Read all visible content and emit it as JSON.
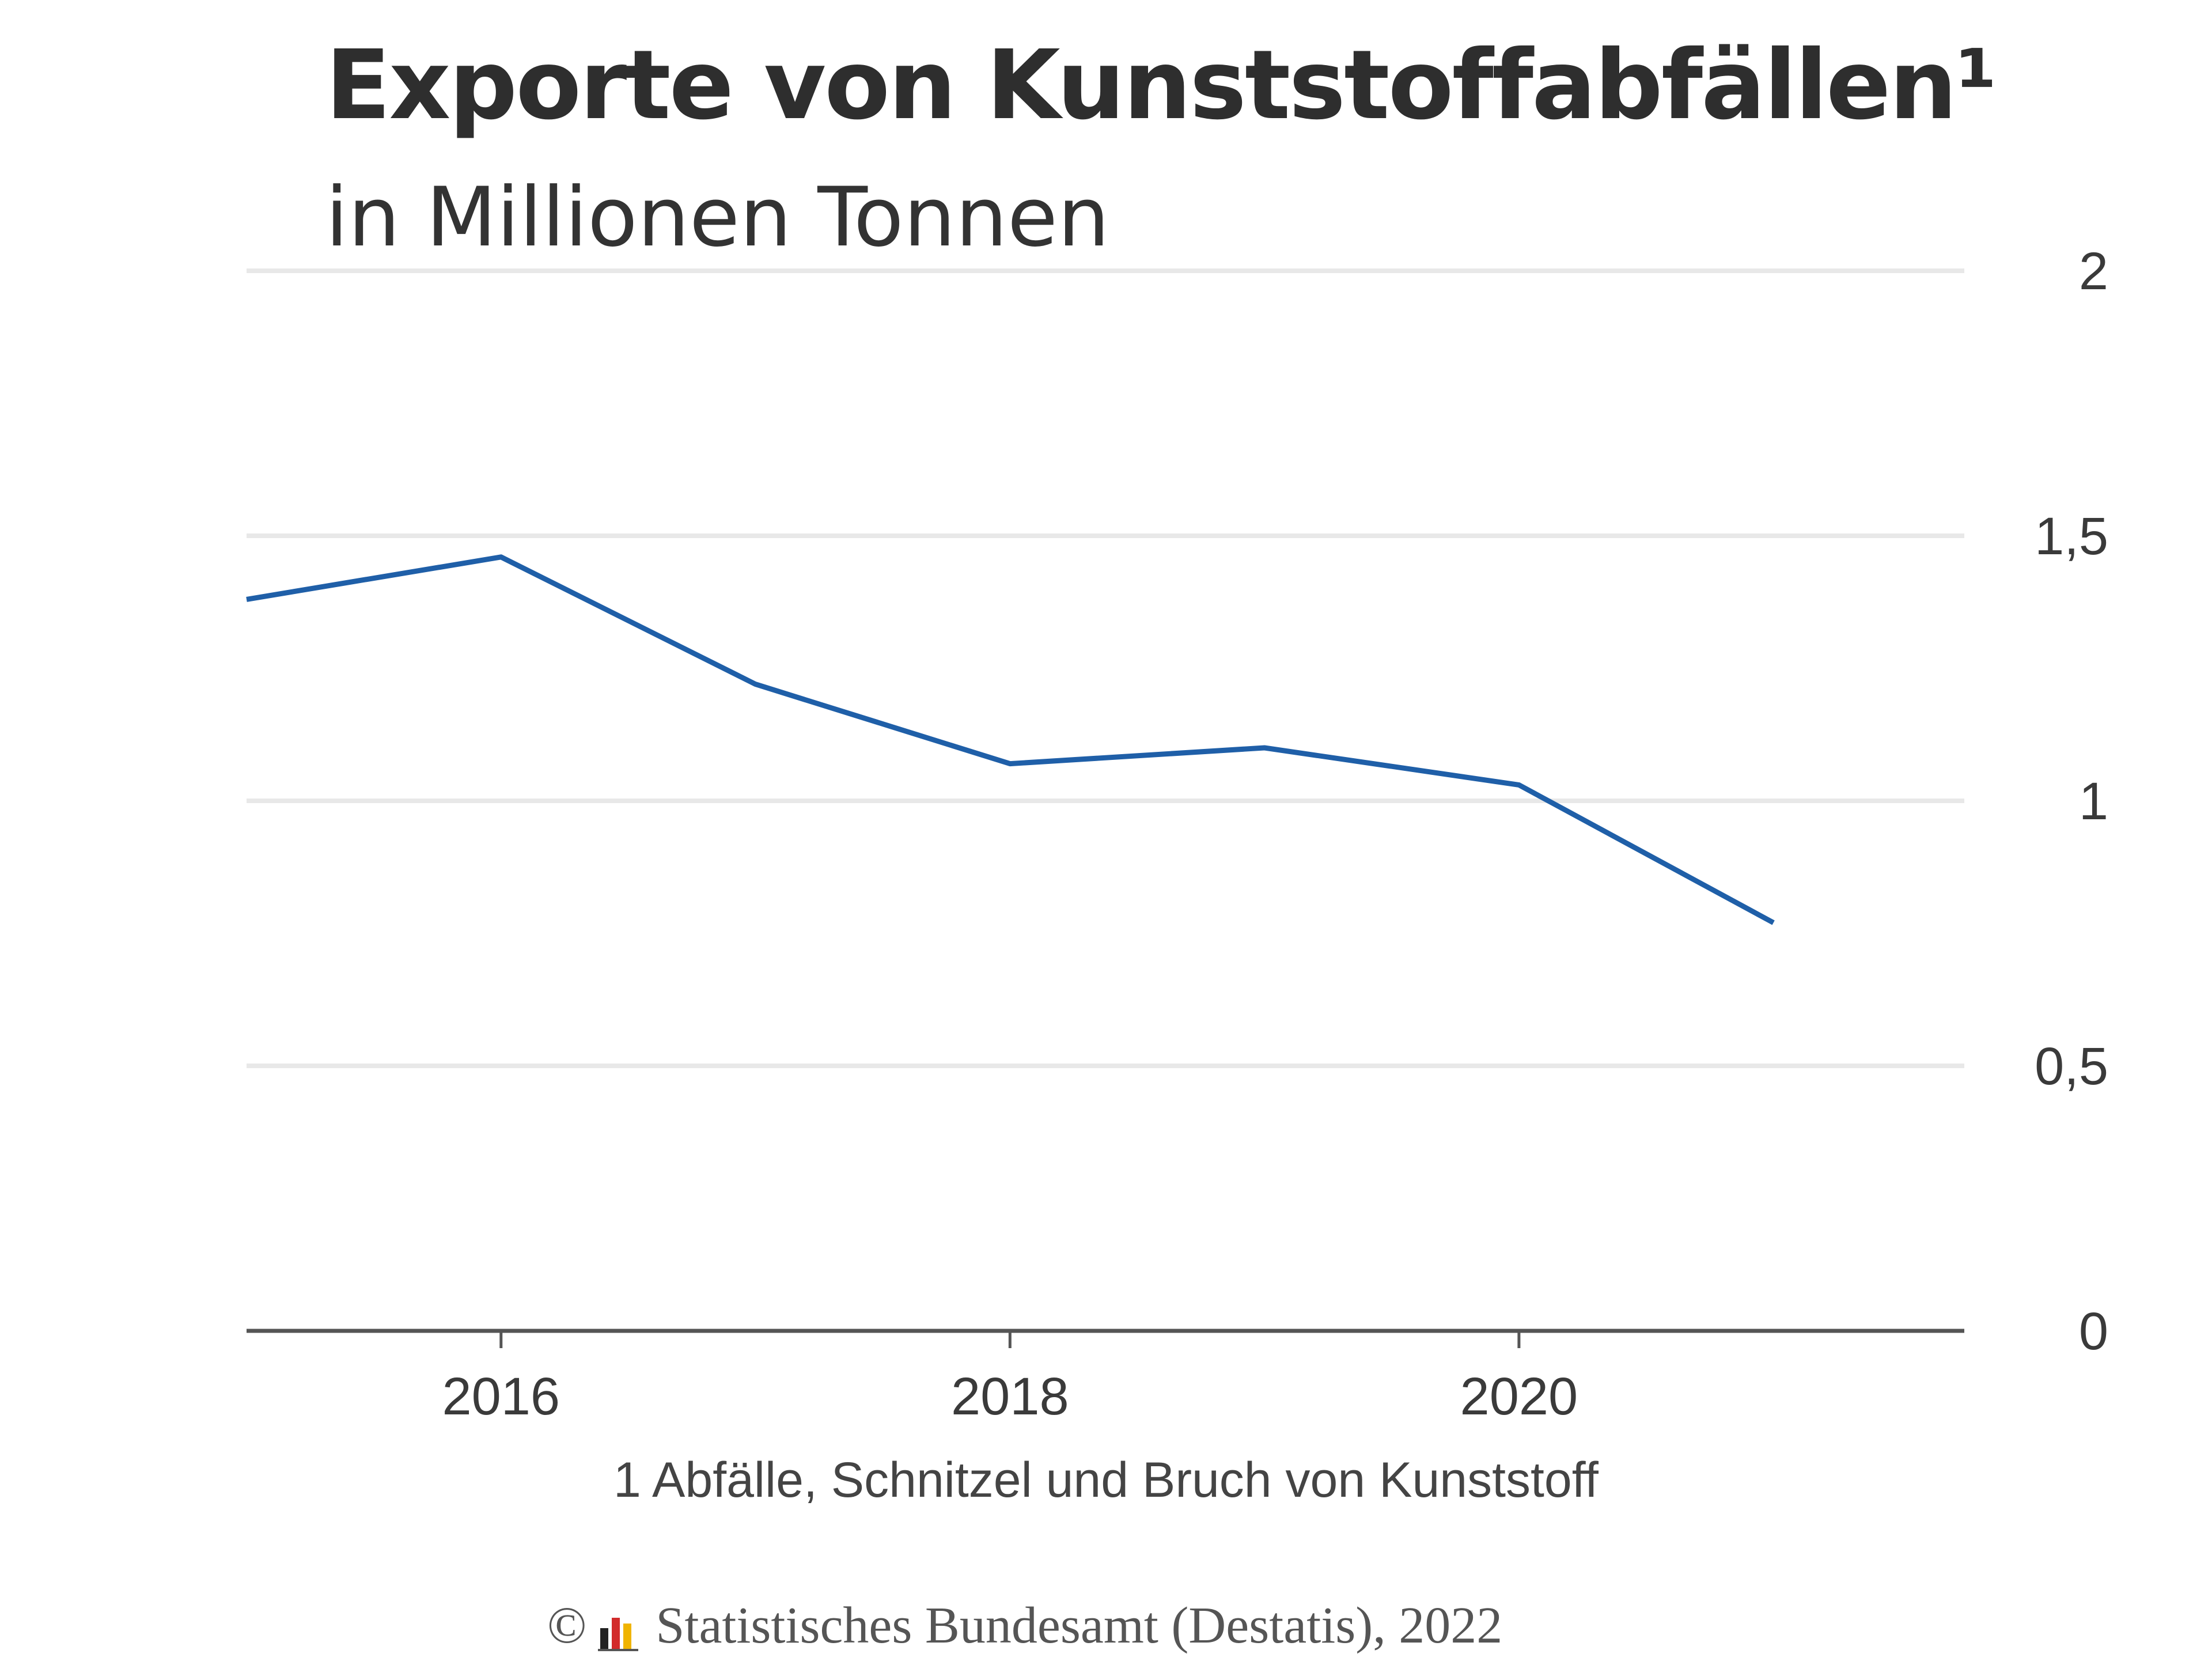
{
  "header": {
    "title": "Exporte von Kunststoffabfällen¹",
    "subtitle": "in Millionen Tonnen"
  },
  "footnote": "1 Abfälle, Schnitzel und Bruch von Kunststoff",
  "source": {
    "copyright": "©",
    "text": "Statistisches Bundesamt (Destatis), 2022"
  },
  "colors": {
    "line": "#1f5fa8",
    "grid": "#e8e8e8",
    "axis": "#555555"
  },
  "chart_data": {
    "type": "line",
    "title": "Exporte von Kunststoffabfällen¹",
    "subtitle": "in Millionen Tonnen",
    "x": [
      2015,
      2016,
      2017,
      2018,
      2019,
      2020,
      2021
    ],
    "series": [
      {
        "values": [
          1.38,
          1.46,
          1.22,
          1.07,
          1.1,
          1.03,
          0.77
        ]
      }
    ],
    "xlim": [
      2015,
      2021.75
    ],
    "ylim": [
      0,
      2
    ],
    "x_ticks": [
      2016,
      2018,
      2020
    ],
    "y_ticks": [
      0,
      0.5,
      1,
      1.5,
      2
    ],
    "y_tick_labels": [
      "0",
      "0,5",
      "1",
      "1,5",
      "2"
    ],
    "y_axis_side": "right",
    "grid": true
  }
}
